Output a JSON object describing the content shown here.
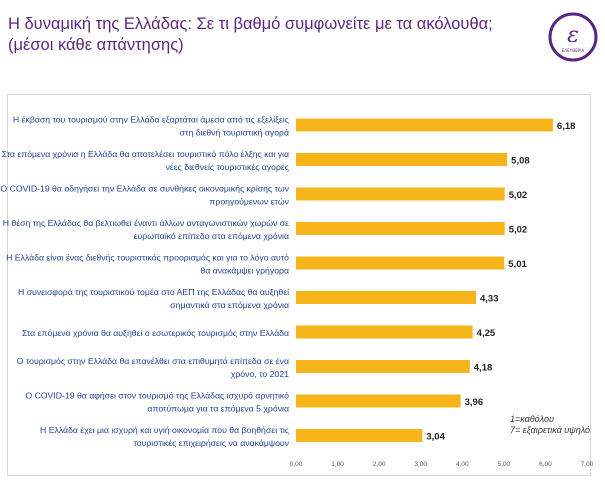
{
  "title": "Η δυναμική της Ελλάδας: Σε τι βαθμό συμφωνείτε με τα ακόλουθα; (μέσοι κάθε απάντησης)",
  "logo": {
    "letter": "ε",
    "text": "ΕΛΕΥΘΕΡΙΑ"
  },
  "colors": {
    "bar": "#f5b51a",
    "title": "#5a2780",
    "logo": "#5a2780"
  },
  "chart_data": {
    "type": "bar",
    "orientation": "horizontal",
    "categories": [
      [
        "Η έκβαση του τουρισμού στην Ελλάδα εξαρτάται άμεσα από τις εξελίξεις",
        "στη διεθνή τουριστική αγορά"
      ],
      [
        "Στα επόμενα χρόνια η Ελλάδα θα αποτελέσει τουριστικό πόλο έλξης και για",
        "νέες διεθνείς τουριστικές αγορές"
      ],
      [
        "Ο COVID-19 θα οδηγήσει την Ελλάδα σε συνθήκες οικονομικής κρίσης των",
        "προηγούμενων ετών"
      ],
      [
        "Η θέση της Ελλάδας θα βελτιωθεί έναντι άλλων ανταγωνιστικών χωρών σε",
        "ευρωπαϊκό επίπεδο στα επόμενα χρόνια"
      ],
      [
        "Η Ελλάδα είναι ένας διεθνής τουριστικός προορισμός και για το λόγο αυτό",
        "θα ανακάμψει γρήγορα"
      ],
      [
        "Η συνεισφορά της τουριστικού τομέα στο ΑΕΠ της Ελλάδας θα αυξηθεί",
        "σημαντικά στα επόμενα χρόνια"
      ],
      [
        "Στα επόμενα χρόνια θα αυξηθεί ο εσωτερικός τουρισμός στην Ελλάδα"
      ],
      [
        "Ο τουρισμός στην Ελλάδα θα επανέλθει στα επιθυμητά επίπεδα σε ένα",
        "χρόνο, το 2021"
      ],
      [
        "Ο COVID-19 θα αφήσει στον τουρισμό της Ελλάδας ισχυρό αρνητικό",
        "αποτύπωμα για τα επόμενα 5 χρόνια"
      ],
      [
        "Η Ελλάδα έχει μια ισχυρή και υγιή οικονομία που θα βοηθήσει τις",
        "τουριστικές επιχειρήσεις να ανακάμψουν"
      ]
    ],
    "values": [
      6.18,
      5.08,
      5.02,
      5.02,
      5.01,
      4.33,
      4.25,
      4.18,
      3.96,
      3.04
    ],
    "value_labels": [
      "6,18",
      "5,08",
      "5,02",
      "5,02",
      "5,01",
      "4,33",
      "4,25",
      "4,18",
      "3,96",
      "3,04"
    ],
    "xlim": [
      0,
      7
    ],
    "xticks": [
      "0,00",
      "1,00",
      "2,00",
      "3,00",
      "4,00",
      "5,00",
      "6,00",
      "7,00"
    ],
    "grid": false,
    "note": [
      "1=καθόλου",
      "7= εξαιρετικά υψηλό"
    ]
  }
}
